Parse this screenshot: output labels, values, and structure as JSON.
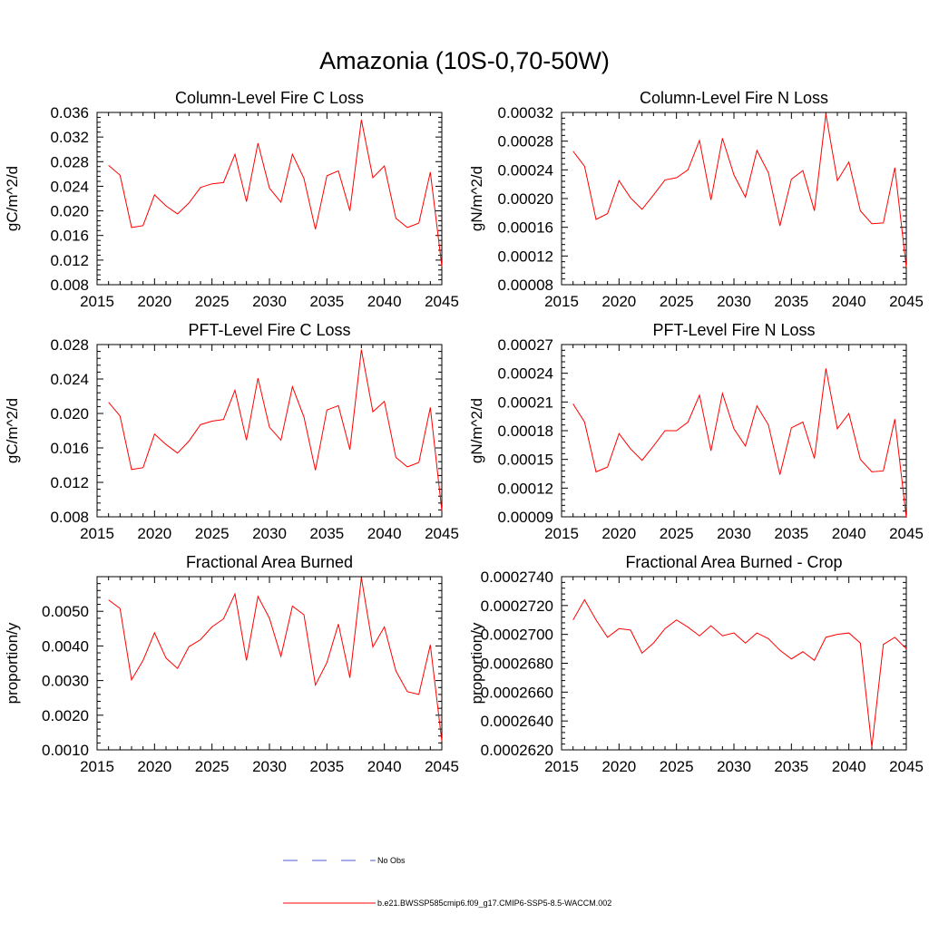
{
  "title": "Amazonia (10S-0,70-50W)",
  "colors": {
    "model": "#ff0000",
    "obs": "#4f5bd5",
    "axis": "#000000"
  },
  "legend": {
    "obs_label": "No Obs",
    "model_label": "b.e21.BWSSP585cmip6.f09_g17.CMIP6-SSP5-8.5-WACCM.002"
  },
  "chart_data": [
    {
      "type": "line",
      "title": "Column-Level Fire C Loss",
      "ylabel": "gC/m^2/d",
      "xlabel": "",
      "xlim": [
        2015,
        2045
      ],
      "ylim": [
        0.008,
        0.036
      ],
      "x_ticks": [
        "2015",
        "2020",
        "2025",
        "2030",
        "2035",
        "2040",
        "2045"
      ],
      "y_ticks": [
        "0.008",
        "0.012",
        "0.016",
        "0.020",
        "0.024",
        "0.028",
        "0.032",
        "0.036"
      ],
      "series": [
        {
          "name": "b.e21.BWSSP585cmip6.f09_g17.CMIP6-SSP5-8.5-WACCM.002",
          "x": [
            2016,
            2017,
            2018,
            2019,
            2020,
            2021,
            2022,
            2023,
            2024,
            2025,
            2026,
            2027,
            2028,
            2029,
            2030,
            2031,
            2032,
            2033,
            2034,
            2035,
            2036,
            2037,
            2038,
            2039,
            2040,
            2041,
            2042,
            2043,
            2044,
            2045
          ],
          "values": [
            0.0274,
            0.0258,
            0.0173,
            0.0176,
            0.0226,
            0.0208,
            0.0195,
            0.0213,
            0.0238,
            0.0244,
            0.0246,
            0.0292,
            0.0215,
            0.031,
            0.0237,
            0.0214,
            0.0292,
            0.0253,
            0.017,
            0.0257,
            0.0265,
            0.02,
            0.0348,
            0.0254,
            0.0273,
            0.0188,
            0.0173,
            0.018,
            0.0263,
            0.011
          ]
        }
      ]
    },
    {
      "type": "line",
      "title": "Column-Level Fire N Loss",
      "ylabel": "gN/m^2/d",
      "xlabel": "",
      "xlim": [
        2015,
        2045
      ],
      "ylim": [
        8e-05,
        0.00032
      ],
      "x_ticks": [
        "2015",
        "2020",
        "2025",
        "2030",
        "2035",
        "2040",
        "2045"
      ],
      "y_ticks": [
        "0.00008",
        "0.00012",
        "0.00016",
        "0.00020",
        "0.00024",
        "0.00028",
        "0.00032"
      ],
      "series": [
        {
          "name": "b.e21.BWSSP585cmip6.f09_g17.CMIP6-SSP5-8.5-WACCM.002",
          "x": [
            2016,
            2017,
            2018,
            2019,
            2020,
            2021,
            2022,
            2023,
            2024,
            2025,
            2026,
            2027,
            2028,
            2029,
            2030,
            2031,
            2032,
            2033,
            2034,
            2035,
            2036,
            2037,
            2038,
            2039,
            2040,
            2041,
            2042,
            2043,
            2044,
            2045
          ],
          "values": [
            0.000266,
            0.000245,
            0.000171,
            0.000179,
            0.000225,
            0.000201,
            0.000185,
            0.000205,
            0.000226,
            0.000229,
            0.00024,
            0.000281,
            0.000198,
            0.000284,
            0.000233,
            0.000202,
            0.000267,
            0.000236,
            0.000162,
            0.000227,
            0.000239,
            0.000183,
            0.000318,
            0.000225,
            0.000251,
            0.000183,
            0.000165,
            0.000166,
            0.000243,
            0.000104
          ]
        }
      ]
    },
    {
      "type": "line",
      "title": "PFT-Level Fire C Loss",
      "ylabel": "gC/m^2/d",
      "xlabel": "",
      "xlim": [
        2015,
        2045
      ],
      "ylim": [
        0.008,
        0.028
      ],
      "x_ticks": [
        "2015",
        "2020",
        "2025",
        "2030",
        "2035",
        "2040",
        "2045"
      ],
      "y_ticks": [
        "0.008",
        "0.012",
        "0.016",
        "0.020",
        "0.024",
        "0.028"
      ],
      "series": [
        {
          "name": "b.e21.BWSSP585cmip6.f09_g17.CMIP6-SSP5-8.5-WACCM.002",
          "x": [
            2016,
            2017,
            2018,
            2019,
            2020,
            2021,
            2022,
            2023,
            2024,
            2025,
            2026,
            2027,
            2028,
            2029,
            2030,
            2031,
            2032,
            2033,
            2034,
            2035,
            2036,
            2037,
            2038,
            2039,
            2040,
            2041,
            2042,
            2043,
            2044,
            2045
          ],
          "values": [
            0.0213,
            0.0197,
            0.0135,
            0.0137,
            0.0176,
            0.0164,
            0.0154,
            0.0168,
            0.0187,
            0.0191,
            0.0193,
            0.0227,
            0.0169,
            0.0241,
            0.0184,
            0.0169,
            0.0231,
            0.0196,
            0.0134,
            0.0204,
            0.0209,
            0.0158,
            0.0274,
            0.0202,
            0.0214,
            0.0149,
            0.0138,
            0.0143,
            0.0207,
            0.0087
          ]
        }
      ]
    },
    {
      "type": "line",
      "title": "PFT-Level Fire N Loss",
      "ylabel": "gN/m^2/d",
      "xlabel": "",
      "xlim": [
        2015,
        2045
      ],
      "ylim": [
        9e-05,
        0.00027
      ],
      "x_ticks": [
        "2015",
        "2020",
        "2025",
        "2030",
        "2035",
        "2040",
        "2045"
      ],
      "y_ticks": [
        "0.00009",
        "0.00012",
        "0.00015",
        "0.00018",
        "0.00021",
        "0.00024",
        "0.00027"
      ],
      "series": [
        {
          "name": "b.e21.BWSSP585cmip6.f09_g17.CMIP6-SSP5-8.5-WACCM.002",
          "x": [
            2016,
            2017,
            2018,
            2019,
            2020,
            2021,
            2022,
            2023,
            2024,
            2025,
            2026,
            2027,
            2028,
            2029,
            2030,
            2031,
            2032,
            2033,
            2034,
            2035,
            2036,
            2037,
            2038,
            2039,
            2040,
            2041,
            2042,
            2043,
            2044,
            2045
          ],
          "values": [
            0.000208,
            0.000189,
            0.000137,
            0.000142,
            0.000177,
            0.000161,
            0.000149,
            0.000164,
            0.00018,
            0.00018,
            0.000189,
            0.000217,
            0.000159,
            0.000219,
            0.000182,
            0.000164,
            0.000206,
            0.000186,
            0.000134,
            0.000183,
            0.000189,
            0.000151,
            0.000245,
            0.000182,
            0.000198,
            0.00015,
            0.000137,
            0.000138,
            0.000192,
            8.9e-05
          ]
        }
      ]
    },
    {
      "type": "line",
      "title": "Fractional Area Burned",
      "ylabel": "proportion/y",
      "xlabel": "",
      "xlim": [
        2015,
        2045
      ],
      "ylim": [
        0.001,
        0.006
      ],
      "x_ticks": [
        "2015",
        "2020",
        "2025",
        "2030",
        "2035",
        "2040",
        "2045"
      ],
      "y_ticks": [
        "0.0010",
        "0.0020",
        "0.0030",
        "0.0040",
        "0.0050"
      ],
      "series": [
        {
          "name": "b.e21.BWSSP585cmip6.f09_g17.CMIP6-SSP5-8.5-WACCM.002",
          "x": [
            2016,
            2017,
            2018,
            2019,
            2020,
            2021,
            2022,
            2023,
            2024,
            2025,
            2026,
            2027,
            2028,
            2029,
            2030,
            2031,
            2032,
            2033,
            2034,
            2035,
            2036,
            2037,
            2038,
            2039,
            2040,
            2041,
            2042,
            2043,
            2044,
            2045
          ],
          "values": [
            0.00533,
            0.00508,
            0.00302,
            0.00358,
            0.00438,
            0.00365,
            0.00335,
            0.00398,
            0.00418,
            0.00455,
            0.00478,
            0.0055,
            0.00358,
            0.00543,
            0.0048,
            0.0037,
            0.00515,
            0.0049,
            0.00287,
            0.00352,
            0.00463,
            0.00308,
            0.00597,
            0.00397,
            0.00455,
            0.00328,
            0.00268,
            0.0026,
            0.00403,
            0.00125
          ]
        }
      ]
    },
    {
      "type": "line",
      "title": "Fractional Area Burned - Crop",
      "ylabel": "proportion/y",
      "xlabel": "",
      "xlim": [
        2015,
        2045
      ],
      "ylim": [
        0.000262,
        0.000274
      ],
      "x_ticks": [
        "2015",
        "2020",
        "2025",
        "2030",
        "2035",
        "2040",
        "2045"
      ],
      "y_ticks": [
        "0.0002620",
        "0.0002640",
        "0.0002660",
        "0.0002680",
        "0.0002700",
        "0.0002720",
        "0.0002740"
      ],
      "series": [
        {
          "name": "b.e21.BWSSP585cmip6.f09_g17.CMIP6-SSP5-8.5-WACCM.002",
          "x": [
            2016,
            2017,
            2018,
            2019,
            2020,
            2021,
            2022,
            2023,
            2024,
            2025,
            2026,
            2027,
            2028,
            2029,
            2030,
            2031,
            2032,
            2033,
            2034,
            2035,
            2036,
            2037,
            2038,
            2039,
            2040,
            2041,
            2042,
            2043,
            2044,
            2045
          ],
          "values": [
            0.000271,
            0.0002724,
            0.000271,
            0.0002698,
            0.0002704,
            0.0002703,
            0.0002687,
            0.0002694,
            0.0002704,
            0.000271,
            0.0002705,
            0.0002699,
            0.0002706,
            0.0002699,
            0.0002701,
            0.0002694,
            0.0002701,
            0.0002697,
            0.0002689,
            0.0002683,
            0.0002688,
            0.0002682,
            0.0002698,
            0.00027,
            0.0002701,
            0.0002694,
            0.0002622,
            0.0002693,
            0.0002698,
            0.000269
          ]
        }
      ]
    }
  ]
}
